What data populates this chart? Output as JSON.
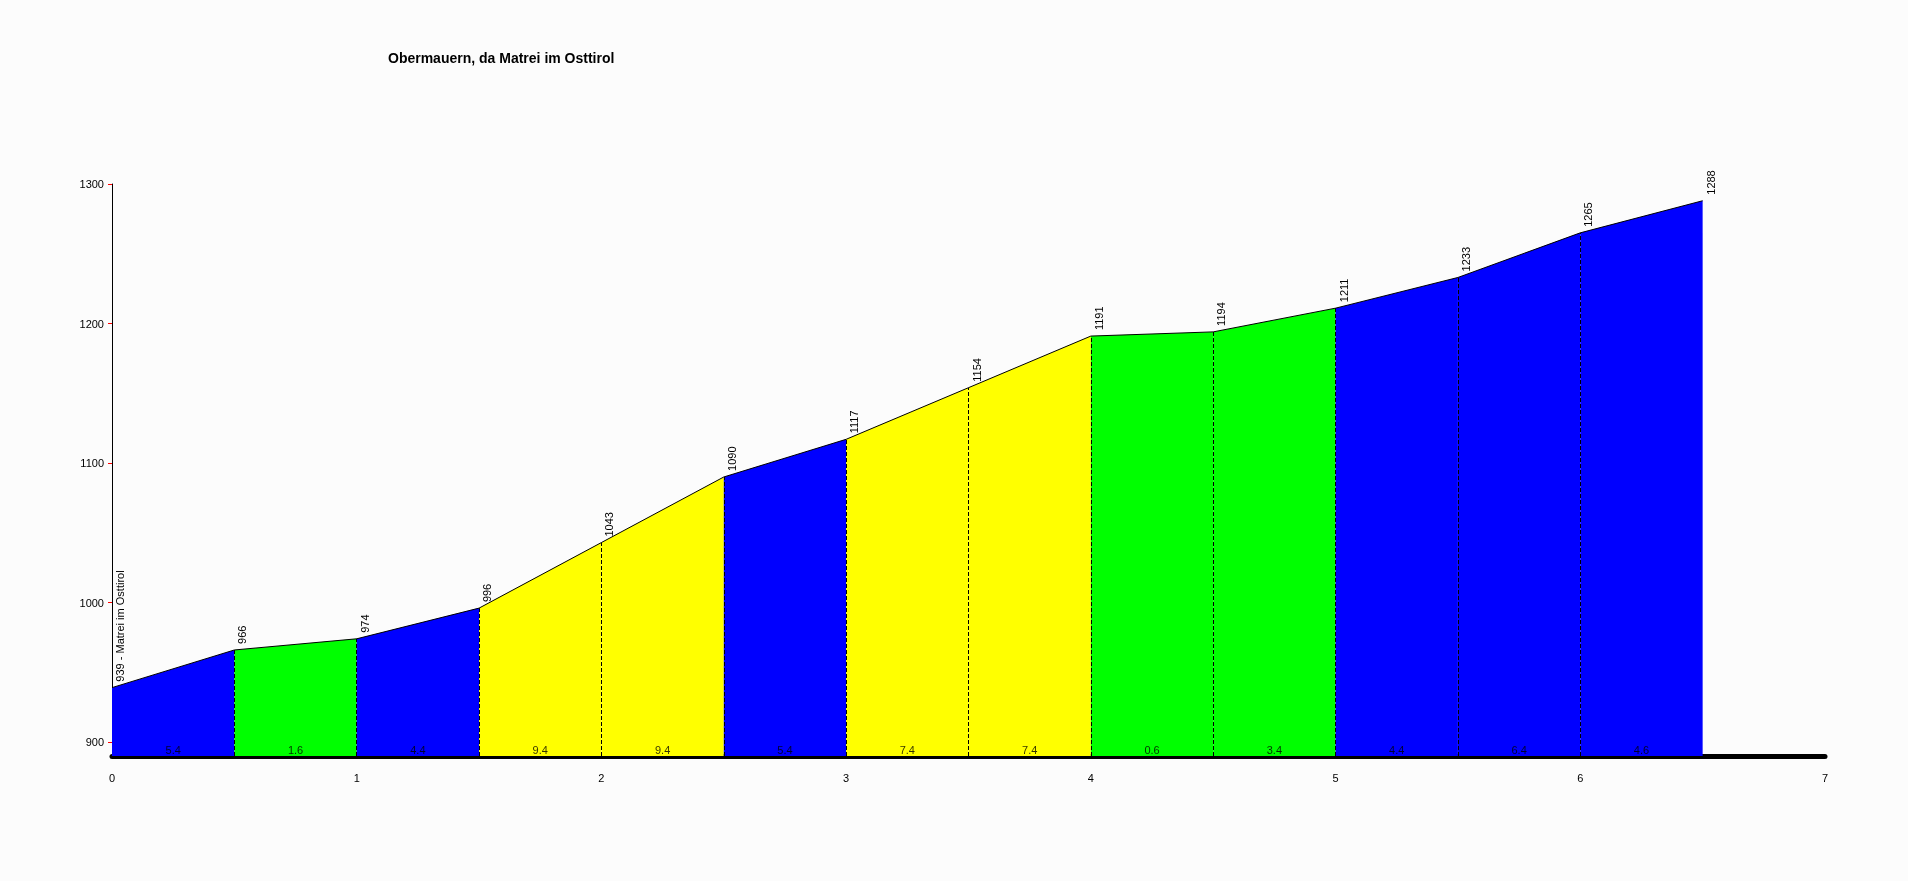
{
  "chart_data": {
    "type": "area",
    "title": "Obermauern, da Matrei im Osttirol",
    "series": [
      {
        "color": "#0000ff",
        "x": [
          0,
          0.5
        ],
        "values": [
          939,
          966
        ],
        "value_labels": [
          "939 - Matrei im Osttirol",
          null
        ]
      },
      {
        "color": "#00ff00",
        "x": [
          0.5,
          1
        ],
        "values": [
          966,
          974
        ],
        "value_labels": [
          "966",
          null
        ]
      },
      {
        "color": "#0000ff",
        "x": [
          1,
          1.5
        ],
        "values": [
          974,
          996
        ],
        "value_labels": [
          "974",
          null
        ]
      },
      {
        "color": "#ffff00",
        "x": [
          1.5,
          2
        ],
        "values": [
          996,
          1043
        ],
        "value_labels": [
          "996",
          null
        ]
      },
      {
        "color": "#ffff00",
        "x": [
          2,
          2.5
        ],
        "values": [
          1043,
          1090
        ],
        "value_labels": [
          "1043",
          null
        ]
      },
      {
        "color": "#0000ff",
        "x": [
          2.5,
          3
        ],
        "values": [
          1090,
          1117
        ],
        "value_labels": [
          "1090",
          null
        ]
      },
      {
        "color": "#ffff00",
        "x": [
          3,
          3.5
        ],
        "values": [
          1117,
          1154
        ],
        "value_labels": [
          "1117",
          null
        ]
      },
      {
        "color": "#ffff00",
        "x": [
          3.5,
          4
        ],
        "values": [
          1154,
          1191
        ],
        "value_labels": [
          "1154",
          null
        ]
      },
      {
        "color": "#00ff00",
        "x": [
          4,
          4.5
        ],
        "values": [
          1191,
          1194
        ],
        "value_labels": [
          "1191",
          null
        ]
      },
      {
        "color": "#00ff00",
        "x": [
          4.5,
          5
        ],
        "values": [
          1194,
          1211
        ],
        "value_labels": [
          "1194",
          null
        ]
      },
      {
        "color": "#0000ff",
        "x": [
          5,
          5.5
        ],
        "values": [
          1211,
          1233
        ],
        "value_labels": [
          "1211",
          null
        ]
      },
      {
        "color": "#0000ff",
        "x": [
          5.5,
          6
        ],
        "values": [
          1233,
          1265
        ],
        "value_labels": [
          "1233",
          null
        ]
      },
      {
        "color": "#0000ff",
        "x": [
          6,
          6.5
        ],
        "values": [
          1265,
          1288
        ],
        "value_labels": [
          "1265",
          "1288"
        ]
      }
    ],
    "xlim": [
      0,
      7
    ],
    "xticks": [
      0,
      1,
      2,
      3,
      4,
      5,
      6,
      7
    ],
    "ylim": [
      890,
      1300
    ],
    "yticks": [
      900,
      1000,
      1100,
      1200,
      1300
    ],
    "grid": false,
    "marker": "none",
    "ref_lines": [
      {
        "axis": "x",
        "value": 0.5,
        "color": "#000000",
        "line_style": "dashed"
      },
      {
        "axis": "x",
        "value": 1,
        "color": "#000000",
        "line_style": "dashed"
      },
      {
        "axis": "x",
        "value": 1.5,
        "color": "#000000",
        "line_style": "dashed"
      },
      {
        "axis": "x",
        "value": 2,
        "color": "#000000",
        "line_style": "dashed"
      },
      {
        "axis": "x",
        "value": 2.5,
        "color": "#000000",
        "line_style": "dashed"
      },
      {
        "axis": "x",
        "value": 3,
        "color": "#000000",
        "line_style": "dashed"
      },
      {
        "axis": "x",
        "value": 3.5,
        "color": "#000000",
        "line_style": "dashed"
      },
      {
        "axis": "x",
        "value": 4,
        "color": "#000000",
        "line_style": "dashed"
      },
      {
        "axis": "x",
        "value": 4.5,
        "color": "#000000",
        "line_style": "dashed"
      },
      {
        "axis": "x",
        "value": 5,
        "color": "#000000",
        "line_style": "dashed"
      },
      {
        "axis": "x",
        "value": 5.5,
        "color": "#000000",
        "line_style": "dashed"
      },
      {
        "axis": "x",
        "value": 6,
        "color": "#000000",
        "line_style": "dashed"
      }
    ],
    "annotations": [
      {
        "text": "5.4",
        "x": 0.25,
        "y": 890
      },
      {
        "text": "1.6",
        "x": 0.75,
        "y": 890
      },
      {
        "text": "4.4",
        "x": 1.25,
        "y": 890
      },
      {
        "text": "9.4",
        "x": 1.75,
        "y": 890
      },
      {
        "text": "9.4",
        "x": 2.25,
        "y": 890
      },
      {
        "text": "5.4",
        "x": 2.75,
        "y": 890
      },
      {
        "text": "7.4",
        "x": 3.25,
        "y": 890
      },
      {
        "text": "7.4",
        "x": 3.75,
        "y": 890
      },
      {
        "text": "0.6",
        "x": 4.25,
        "y": 890
      },
      {
        "text": "3.4",
        "x": 4.75,
        "y": 890
      },
      {
        "text": "4.4",
        "x": 5.25,
        "y": 890
      },
      {
        "text": "6.4",
        "x": 5.75,
        "y": 890
      },
      {
        "text": "4.6",
        "x": 6.25,
        "y": 890
      }
    ]
  }
}
